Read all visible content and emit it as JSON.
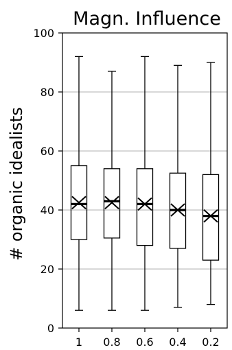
{
  "chart_data": {
    "type": "box",
    "title": "Magn. Influence",
    "xlabel": "",
    "ylabel": "# organic idealists",
    "categories": [
      "1",
      "0.8",
      "0.6",
      "0.4",
      "0.2"
    ],
    "ylim": [
      0,
      100
    ],
    "yticks": [
      0,
      20,
      40,
      60,
      80,
      100
    ],
    "ytick_labels": [
      "0",
      "20",
      "40",
      "60",
      "80",
      "100"
    ],
    "grid": "horizontal",
    "boxes": [
      {
        "category": "1",
        "min": 6,
        "q1": 30,
        "median": 42,
        "mean": 42.5,
        "q3": 55,
        "max": 92
      },
      {
        "category": "0.8",
        "min": 6,
        "q1": 30.5,
        "median": 43,
        "mean": 42.5,
        "q3": 54,
        "max": 87
      },
      {
        "category": "0.6",
        "min": 6,
        "q1": 28,
        "median": 42,
        "mean": 42,
        "q3": 54,
        "max": 92
      },
      {
        "category": "0.4",
        "min": 7,
        "q1": 27,
        "median": 40,
        "mean": 40,
        "q3": 52.5,
        "max": 89
      },
      {
        "category": "0.2",
        "min": 8,
        "q1": 23,
        "median": 38,
        "mean": 38,
        "q3": 52,
        "max": 90
      }
    ],
    "colors": {
      "background": "#ffffff",
      "axis": "#000000",
      "grid": "#b0b0b0",
      "box": "#000000",
      "text": "#000000"
    }
  }
}
